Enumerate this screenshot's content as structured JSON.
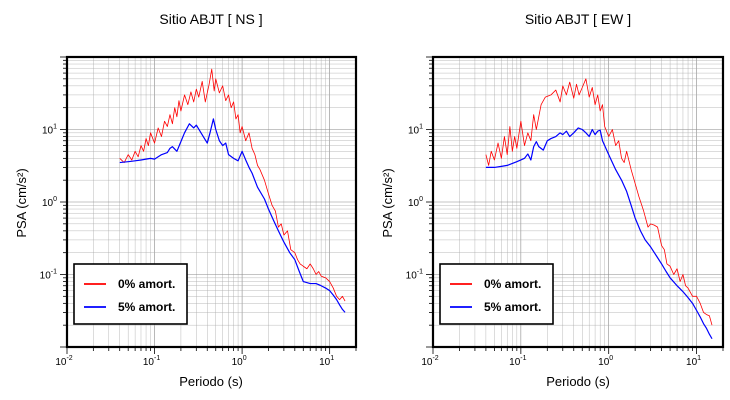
{
  "chart_data": [
    {
      "type": "line",
      "title": "Sitio ABJT [ NS ]",
      "xlabel": "Periodo (s)",
      "ylabel": "PSA (cm/s²)",
      "xscale": "log",
      "yscale": "log",
      "xlim": [
        0.01,
        20
      ],
      "ylim": [
        0.01,
        100
      ],
      "grid": true,
      "legend_position": "bottom-left",
      "x_ticks": [
        {
          "base": "10",
          "exp": "-2",
          "value": 0.01
        },
        {
          "base": "10",
          "exp": "-1",
          "value": 0.1
        },
        {
          "base": "10",
          "exp": "0",
          "value": 1
        },
        {
          "base": "10",
          "exp": "1",
          "value": 10
        }
      ],
      "y_ticks": [
        {
          "base": "10",
          "exp": "-1",
          "value": 0.1
        },
        {
          "base": "10",
          "exp": "0",
          "value": 1
        },
        {
          "base": "10",
          "exp": "1",
          "value": 10
        }
      ],
      "series": [
        {
          "name": "0% amort.",
          "color": "#ff0000",
          "points": [
            [
              0.04,
              4.0
            ],
            [
              0.045,
              3.5
            ],
            [
              0.05,
              4.5
            ],
            [
              0.055,
              3.8
            ],
            [
              0.06,
              5.0
            ],
            [
              0.065,
              4.2
            ],
            [
              0.07,
              6.0
            ],
            [
              0.075,
              5.0
            ],
            [
              0.08,
              7.5
            ],
            [
              0.085,
              6.0
            ],
            [
              0.09,
              9.0
            ],
            [
              0.1,
              6.5
            ],
            [
              0.11,
              10.5
            ],
            [
              0.12,
              8.0
            ],
            [
              0.13,
              13.0
            ],
            [
              0.14,
              11.0
            ],
            [
              0.15,
              16.0
            ],
            [
              0.16,
              12.0
            ],
            [
              0.17,
              20.0
            ],
            [
              0.18,
              15.0
            ],
            [
              0.19,
              25.0
            ],
            [
              0.2,
              18.0
            ],
            [
              0.22,
              30.0
            ],
            [
              0.24,
              22.0
            ],
            [
              0.26,
              33.0
            ],
            [
              0.28,
              24.0
            ],
            [
              0.3,
              36.0
            ],
            [
              0.32,
              28.0
            ],
            [
              0.35,
              46.0
            ],
            [
              0.38,
              24.0
            ],
            [
              0.4,
              32.0
            ],
            [
              0.42,
              42.0
            ],
            [
              0.45,
              68.0
            ],
            [
              0.48,
              34.0
            ],
            [
              0.5,
              50.0
            ],
            [
              0.55,
              32.0
            ],
            [
              0.6,
              40.0
            ],
            [
              0.65,
              25.0
            ],
            [
              0.7,
              30.0
            ],
            [
              0.75,
              20.0
            ],
            [
              0.8,
              24.0
            ],
            [
              0.85,
              14.0
            ],
            [
              0.9,
              16.0
            ],
            [
              0.95,
              9.0
            ],
            [
              1.0,
              11.0
            ],
            [
              1.1,
              7.0
            ],
            [
              1.2,
              9.0
            ],
            [
              1.3,
              5.5
            ],
            [
              1.4,
              4.5
            ],
            [
              1.5,
              3.2
            ],
            [
              1.6,
              2.8
            ],
            [
              1.8,
              2.0
            ],
            [
              2.0,
              1.3
            ],
            [
              2.2,
              0.9
            ],
            [
              2.4,
              0.75
            ],
            [
              2.6,
              0.45
            ],
            [
              2.8,
              0.5
            ],
            [
              3.0,
              0.35
            ],
            [
              3.3,
              0.4
            ],
            [
              3.6,
              0.22
            ],
            [
              4.0,
              0.2
            ],
            [
              4.3,
              0.16
            ],
            [
              4.6,
              0.14
            ],
            [
              5.0,
              0.13
            ],
            [
              5.5,
              0.12
            ],
            [
              6.0,
              0.14
            ],
            [
              6.5,
              0.12
            ],
            [
              7.0,
              0.1
            ],
            [
              7.5,
              0.11
            ],
            [
              8.0,
              0.095
            ],
            [
              9.0,
              0.09
            ],
            [
              10.0,
              0.08
            ],
            [
              11.0,
              0.065
            ],
            [
              12.0,
              0.05
            ],
            [
              13.0,
              0.045
            ],
            [
              14.0,
              0.05
            ],
            [
              15.0,
              0.043
            ]
          ]
        },
        {
          "name": "5% amort.",
          "color": "#0000ff",
          "points": [
            [
              0.04,
              3.5
            ],
            [
              0.05,
              3.6
            ],
            [
              0.06,
              3.7
            ],
            [
              0.07,
              3.8
            ],
            [
              0.08,
              3.9
            ],
            [
              0.09,
              4.0
            ],
            [
              0.1,
              3.9
            ],
            [
              0.12,
              4.5
            ],
            [
              0.14,
              4.8
            ],
            [
              0.15,
              5.5
            ],
            [
              0.16,
              5.8
            ],
            [
              0.18,
              5.0
            ],
            [
              0.2,
              6.8
            ],
            [
              0.22,
              9.0
            ],
            [
              0.25,
              12.0
            ],
            [
              0.28,
              10.5
            ],
            [
              0.3,
              11.5
            ],
            [
              0.33,
              9.5
            ],
            [
              0.36,
              8.0
            ],
            [
              0.4,
              6.5
            ],
            [
              0.43,
              9.0
            ],
            [
              0.47,
              14.0
            ],
            [
              0.5,
              10.0
            ],
            [
              0.55,
              7.0
            ],
            [
              0.6,
              6.0
            ],
            [
              0.65,
              6.5
            ],
            [
              0.7,
              4.5
            ],
            [
              0.8,
              4.0
            ],
            [
              0.9,
              3.7
            ],
            [
              1.0,
              5.0
            ],
            [
              1.1,
              3.8
            ],
            [
              1.2,
              3.0
            ],
            [
              1.3,
              2.5
            ],
            [
              1.5,
              1.6
            ],
            [
              1.8,
              1.1
            ],
            [
              2.0,
              0.8
            ],
            [
              2.3,
              0.55
            ],
            [
              2.6,
              0.4
            ],
            [
              3.0,
              0.28
            ],
            [
              3.5,
              0.2
            ],
            [
              4.0,
              0.16
            ],
            [
              4.5,
              0.11
            ],
            [
              5.0,
              0.08
            ],
            [
              6.0,
              0.075
            ],
            [
              7.0,
              0.075
            ],
            [
              8.0,
              0.07
            ],
            [
              9.0,
              0.065
            ],
            [
              10.0,
              0.06
            ],
            [
              11.0,
              0.052
            ],
            [
              12.0,
              0.045
            ],
            [
              13.0,
              0.038
            ],
            [
              14.0,
              0.033
            ],
            [
              15.0,
              0.03
            ]
          ]
        }
      ]
    },
    {
      "type": "line",
      "title": "Sitio ABJT [ EW ]",
      "xlabel": "Periodo (s)",
      "ylabel": "PSA (cm/s²)",
      "xscale": "log",
      "yscale": "log",
      "xlim": [
        0.01,
        20
      ],
      "ylim": [
        0.01,
        100
      ],
      "grid": true,
      "legend_position": "bottom-left",
      "x_ticks": [
        {
          "base": "10",
          "exp": "-2",
          "value": 0.01
        },
        {
          "base": "10",
          "exp": "-1",
          "value": 0.1
        },
        {
          "base": "10",
          "exp": "0",
          "value": 1
        },
        {
          "base": "10",
          "exp": "1",
          "value": 10
        }
      ],
      "y_ticks": [
        {
          "base": "10",
          "exp": "-1",
          "value": 0.1
        },
        {
          "base": "10",
          "exp": "0",
          "value": 1
        },
        {
          "base": "10",
          "exp": "1",
          "value": 10
        }
      ],
      "series": [
        {
          "name": "0% amort.",
          "color": "#ff0000",
          "points": [
            [
              0.04,
              4.5
            ],
            [
              0.043,
              3.2
            ],
            [
              0.046,
              5.0
            ],
            [
              0.05,
              3.8
            ],
            [
              0.055,
              6.5
            ],
            [
              0.06,
              4.0
            ],
            [
              0.065,
              8.0
            ],
            [
              0.07,
              4.5
            ],
            [
              0.075,
              11.0
            ],
            [
              0.08,
              5.0
            ],
            [
              0.085,
              8.0
            ],
            [
              0.09,
              5.5
            ],
            [
              0.1,
              13.0
            ],
            [
              0.11,
              6.0
            ],
            [
              0.12,
              9.0
            ],
            [
              0.13,
              7.0
            ],
            [
              0.14,
              16.0
            ],
            [
              0.15,
              10.0
            ],
            [
              0.17,
              22.0
            ],
            [
              0.19,
              28.0
            ],
            [
              0.22,
              30.0
            ],
            [
              0.25,
              35.0
            ],
            [
              0.28,
              24.0
            ],
            [
              0.3,
              40.0
            ],
            [
              0.33,
              30.0
            ],
            [
              0.36,
              45.0
            ],
            [
              0.4,
              27.0
            ],
            [
              0.43,
              42.0
            ],
            [
              0.46,
              30.0
            ],
            [
              0.5,
              38.0
            ],
            [
              0.55,
              50.0
            ],
            [
              0.6,
              28.0
            ],
            [
              0.65,
              38.0
            ],
            [
              0.7,
              22.0
            ],
            [
              0.75,
              30.0
            ],
            [
              0.8,
              18.0
            ],
            [
              0.85,
              22.0
            ],
            [
              0.9,
              11.0
            ],
            [
              1.0,
              8.0
            ],
            [
              1.1,
              10.0
            ],
            [
              1.2,
              6.0
            ],
            [
              1.3,
              7.0
            ],
            [
              1.4,
              4.0
            ],
            [
              1.5,
              3.5
            ],
            [
              1.6,
              5.0
            ],
            [
              1.8,
              2.8
            ],
            [
              2.0,
              1.8
            ],
            [
              2.2,
              1.2
            ],
            [
              2.5,
              0.75
            ],
            [
              2.8,
              0.45
            ],
            [
              3.0,
              0.5
            ],
            [
              3.3,
              0.48
            ],
            [
              3.6,
              0.45
            ],
            [
              4.0,
              0.25
            ],
            [
              4.3,
              0.22
            ],
            [
              4.6,
              0.14
            ],
            [
              5.0,
              0.13
            ],
            [
              5.5,
              0.1
            ],
            [
              6.0,
              0.12
            ],
            [
              6.5,
              0.08
            ],
            [
              7.0,
              0.1
            ],
            [
              7.5,
              0.07
            ],
            [
              8.0,
              0.065
            ],
            [
              9.0,
              0.05
            ],
            [
              10.0,
              0.05
            ],
            [
              11.0,
              0.04
            ],
            [
              12.0,
              0.03
            ],
            [
              13.0,
              0.028
            ],
            [
              14.0,
              0.027
            ],
            [
              15.0,
              0.02
            ]
          ]
        },
        {
          "name": "5% amort.",
          "color": "#0000ff",
          "points": [
            [
              0.04,
              3.0
            ],
            [
              0.05,
              3.0
            ],
            [
              0.06,
              3.1
            ],
            [
              0.07,
              3.2
            ],
            [
              0.08,
              3.4
            ],
            [
              0.09,
              3.6
            ],
            [
              0.1,
              3.8
            ],
            [
              0.11,
              4.0
            ],
            [
              0.12,
              4.6
            ],
            [
              0.13,
              3.8
            ],
            [
              0.14,
              5.8
            ],
            [
              0.15,
              6.8
            ],
            [
              0.16,
              5.8
            ],
            [
              0.18,
              5.2
            ],
            [
              0.2,
              7.0
            ],
            [
              0.22,
              7.5
            ],
            [
              0.25,
              8.0
            ],
            [
              0.28,
              9.0
            ],
            [
              0.3,
              8.5
            ],
            [
              0.33,
              9.5
            ],
            [
              0.36,
              8.0
            ],
            [
              0.4,
              9.0
            ],
            [
              0.45,
              10.5
            ],
            [
              0.5,
              10.0
            ],
            [
              0.55,
              9.0
            ],
            [
              0.6,
              8.0
            ],
            [
              0.65,
              10.0
            ],
            [
              0.7,
              8.5
            ],
            [
              0.75,
              9.5
            ],
            [
              0.8,
              9.8
            ],
            [
              0.85,
              7.0
            ],
            [
              0.9,
              6.0
            ],
            [
              1.0,
              4.5
            ],
            [
              1.1,
              3.5
            ],
            [
              1.2,
              2.8
            ],
            [
              1.4,
              2.0
            ],
            [
              1.6,
              1.4
            ],
            [
              1.8,
              0.9
            ],
            [
              2.0,
              0.6
            ],
            [
              2.3,
              0.4
            ],
            [
              2.6,
              0.3
            ],
            [
              3.0,
              0.24
            ],
            [
              3.5,
              0.18
            ],
            [
              4.0,
              0.14
            ],
            [
              4.5,
              0.11
            ],
            [
              5.0,
              0.09
            ],
            [
              6.0,
              0.07
            ],
            [
              7.0,
              0.058
            ],
            [
              8.0,
              0.048
            ],
            [
              9.0,
              0.04
            ],
            [
              10.0,
              0.032
            ],
            [
              11.0,
              0.026
            ],
            [
              12.0,
              0.021
            ],
            [
              13.0,
              0.018
            ],
            [
              14.0,
              0.015
            ],
            [
              15.0,
              0.013
            ]
          ]
        }
      ]
    }
  ]
}
